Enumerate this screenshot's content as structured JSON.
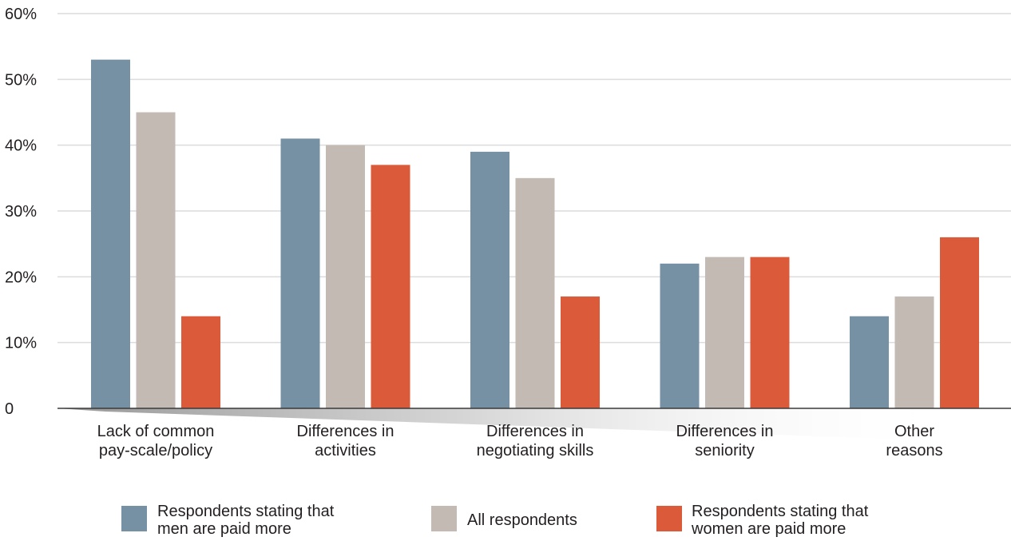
{
  "chart_data": {
    "type": "bar",
    "categories": [
      [
        "Lack of common",
        "pay-scale/policy"
      ],
      [
        "Differences in",
        "activities"
      ],
      [
        "Differences in",
        "negotiating skills"
      ],
      [
        "Differences in",
        "seniority"
      ],
      [
        "Other",
        "reasons"
      ]
    ],
    "series": [
      {
        "name": [
          "Respondents stating that",
          "men are paid more"
        ],
        "color": "#7591a3",
        "values": [
          53,
          41,
          39,
          22,
          14
        ]
      },
      {
        "name": [
          "All respondents"
        ],
        "color": "#c3bab3",
        "values": [
          45,
          40,
          35,
          23,
          17
        ]
      },
      {
        "name": [
          "Respondents stating that",
          "women are paid more"
        ],
        "color": "#db5a39",
        "values": [
          14,
          37,
          17,
          23,
          26
        ]
      }
    ],
    "yticks": [
      0,
      10,
      20,
      30,
      40,
      50,
      60
    ],
    "ytick_labels": [
      "0",
      "10%",
      "20%",
      "30%",
      "40%",
      "50%",
      "60%"
    ],
    "ylim": [
      0,
      60
    ],
    "grid": true,
    "legend": "bottom"
  }
}
